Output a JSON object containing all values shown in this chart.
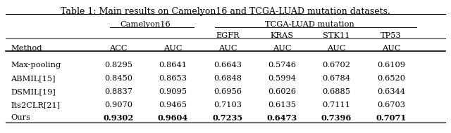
{
  "title": "Table 1: Main results on Camelyon16 and TCGA-LUAD mutation datasets.",
  "col_headers": [
    "Method",
    "ACC",
    "AUC",
    "AUC",
    "AUC",
    "AUC",
    "AUC"
  ],
  "sub_headers_row": [
    "",
    "",
    "EGFR",
    "KRAS",
    "STK11",
    "TP53"
  ],
  "group_header_camelyon": "Camelyon16",
  "group_header_tcga": "TCGA-LUAD mutation",
  "rows": [
    [
      "Max-pooling",
      "0.8295",
      "0.8641",
      "0.6643",
      "0.5746",
      "0.6702",
      "0.6109"
    ],
    [
      "ABMIL[15]",
      "0.8450",
      "0.8653",
      "0.6848",
      "0.5994",
      "0.6784",
      "0.6520"
    ],
    [
      "DSMIL[19]",
      "0.8837",
      "0.9095",
      "0.6956",
      "0.6026",
      "0.6885",
      "0.6344"
    ],
    [
      "Its2CLR[21]",
      "0.9070",
      "0.9465",
      "0.7103",
      "0.6135",
      "0.7111",
      "0.6703"
    ],
    [
      "Ours",
      "0.9302",
      "0.9604",
      "0.7235",
      "0.6473",
      "0.7396",
      "0.7071"
    ]
  ],
  "bold_row": 4,
  "background_color": "#ffffff",
  "font_size": 8.2,
  "title_font_size": 9.0
}
